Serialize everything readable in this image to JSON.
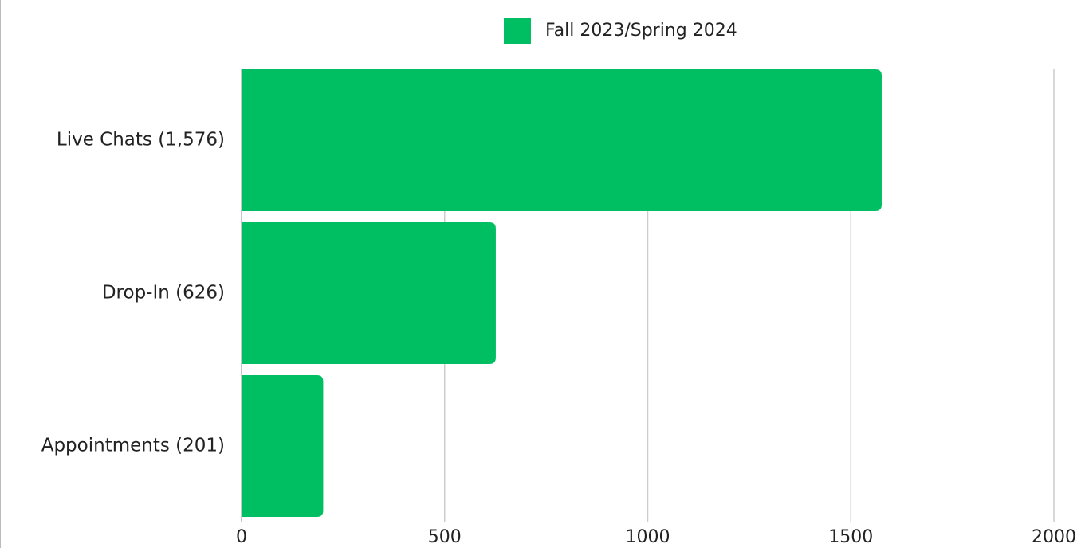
{
  "chart_data": {
    "type": "bar",
    "orientation": "horizontal",
    "legend": "top",
    "series": [
      {
        "name": "Fall 2023/Spring 2024",
        "color": "#00bf63",
        "values": [
          1576,
          626,
          201
        ]
      }
    ],
    "categories": [
      "Live Chats (1,576)",
      "Drop-In (626)",
      "Appointments (201)"
    ],
    "xlim": [
      0,
      2000
    ],
    "xticks": [
      0,
      500,
      1000,
      1500,
      2000
    ],
    "grid": true
  }
}
